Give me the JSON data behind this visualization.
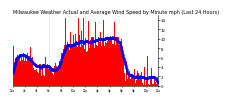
{
  "title": "Milwaukee Weather Actual and Average Wind Speed by Minute mph (Last 24 Hours)",
  "title_fontsize": 3.5,
  "background_color": "#ffffff",
  "bar_color": "#ff0000",
  "line_color": "#0000ff",
  "ylim": [
    0,
    15
  ],
  "yticks": [
    0,
    2,
    4,
    6,
    8,
    10,
    12,
    14
  ],
  "num_points": 1440,
  "vline_positions": [
    360,
    720
  ],
  "vline_color": "#bbbbbb",
  "seed": 99
}
